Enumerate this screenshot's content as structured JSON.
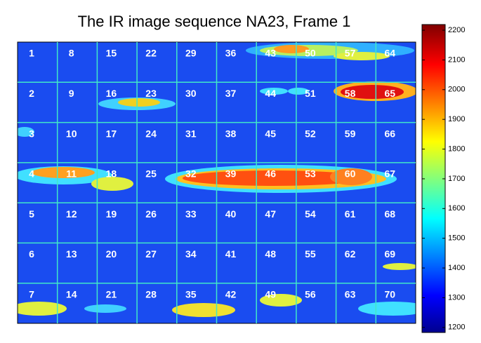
{
  "chart_data": {
    "type": "image-grid",
    "title": "The IR image sequence NA23, Frame 1",
    "cells": [
      1,
      2,
      3,
      4,
      5,
      6,
      7,
      8,
      9,
      10,
      11,
      12,
      13,
      14,
      15,
      16,
      17,
      18,
      19,
      20,
      21,
      22,
      23,
      24,
      25,
      26,
      27,
      28,
      29,
      30,
      31,
      32,
      33,
      34,
      35,
      36,
      37,
      38,
      39,
      40,
      41,
      42,
      43,
      44,
      45,
      46,
      47,
      48,
      49,
      50,
      51,
      52,
      53,
      54,
      55,
      56,
      57,
      58,
      59,
      60,
      61,
      62,
      63,
      64,
      65,
      66,
      67,
      68,
      69,
      70
    ],
    "clim": [
      1183,
      2219
    ],
    "yticks": [
      1200,
      1300,
      1400,
      1500,
      1600,
      1700,
      1800,
      1900,
      2000,
      2100,
      2200
    ]
  }
}
